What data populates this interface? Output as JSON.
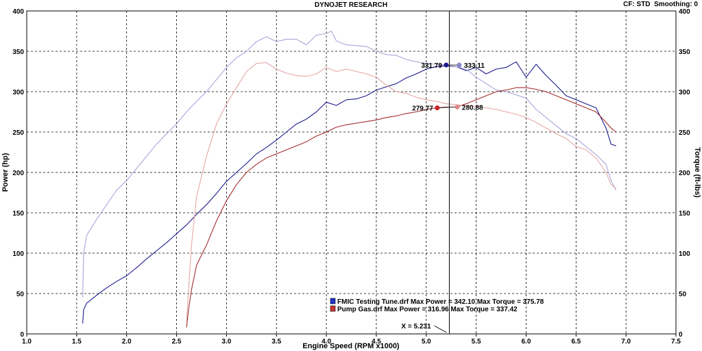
{
  "header": {
    "title": "DYNOJET RESEARCH",
    "cf_label": "CF: STD",
    "smoothing_label": "Smoothing: 0"
  },
  "cursor": {
    "label": "X = 5.231",
    "x": 5.231
  },
  "colors": {
    "fmic_power": "#1a1a8c",
    "fmic_torque": "#a6a6d9",
    "pump_power": "#a32a2a",
    "pump_torque": "#e6a6a6",
    "grid": "#000000",
    "legend_fmic": "#2233cc",
    "legend_pump": "#cc3333"
  },
  "legend": [
    {
      "name": "FMIC Testing Tune.drf",
      "max_power_label": "Max Power = 342.10",
      "max_torque_label": "Max Torque = 375.78"
    },
    {
      "name": "Pump Gas.drf",
      "max_power_label": "Max Power = 316.96",
      "max_torque_label": "Max Torque = 337.42"
    }
  ],
  "markers": [
    {
      "label": "331.79",
      "x": 5.2,
      "y": 333,
      "axis": "power",
      "color": "#1a1a8c"
    },
    {
      "label": "333.11",
      "x": 5.33,
      "y": 333,
      "axis": "torque",
      "color": "#8888cc"
    },
    {
      "label": "279.77",
      "x": 5.11,
      "y": 280,
      "axis": "power",
      "color": "#cc2222"
    },
    {
      "label": "280.88",
      "x": 5.31,
      "y": 281,
      "axis": "torque",
      "color": "#e08a8a"
    }
  ],
  "chart_data": {
    "type": "line",
    "title": "DYNOJET RESEARCH",
    "xlabel": "Engine Speed (RPM x1000)",
    "ylabel": "Power (hp)",
    "y2label": "Torque (ft-lbs)",
    "xlim": [
      1.0,
      7.5
    ],
    "ylim": [
      0,
      400
    ],
    "y2lim": [
      0,
      400
    ],
    "xticks": [
      "1.0",
      "1.5",
      "2.0",
      "2.5",
      "3.0",
      "3.5",
      "4.0",
      "4.5",
      "5.0",
      "5.5",
      "6.0",
      "6.5",
      "7.0",
      "7.5"
    ],
    "yticks": [
      "0",
      "50",
      "100",
      "150",
      "200",
      "250",
      "300",
      "350",
      "400"
    ],
    "grid": true,
    "legend_position": "bottom-center",
    "series": [
      {
        "name": "FMIC Testing Tune.drf",
        "quantity": "power",
        "axis": "left",
        "x": [
          1.56,
          1.57,
          1.6,
          1.7,
          1.8,
          1.9,
          2.0,
          2.1,
          2.2,
          2.3,
          2.4,
          2.5,
          2.6,
          2.7,
          2.8,
          2.9,
          3.0,
          3.1,
          3.2,
          3.3,
          3.4,
          3.5,
          3.6,
          3.7,
          3.8,
          3.9,
          4.0,
          4.1,
          4.2,
          4.3,
          4.4,
          4.5,
          4.6,
          4.7,
          4.8,
          4.9,
          5.0,
          5.1,
          5.2,
          5.3,
          5.4,
          5.5,
          5.6,
          5.7,
          5.8,
          5.9,
          6.0,
          6.1,
          6.2,
          6.3,
          6.4,
          6.5,
          6.6,
          6.7,
          6.8,
          6.85,
          6.9
        ],
        "y": [
          13,
          30,
          38,
          48,
          57,
          65,
          72,
          82,
          93,
          103,
          113,
          124,
          135,
          148,
          160,
          174,
          189,
          200,
          211,
          223,
          231,
          240,
          250,
          260,
          266,
          275,
          287,
          283,
          290,
          291,
          295,
          302,
          306,
          310,
          317,
          322,
          328,
          331,
          332,
          331,
          326,
          330,
          322,
          328,
          330,
          337,
          318,
          334,
          320,
          308,
          295,
          290,
          285,
          280,
          255,
          235,
          233
        ]
      },
      {
        "name": "FMIC Testing Tune.drf",
        "quantity": "torque",
        "axis": "right",
        "x": [
          1.56,
          1.57,
          1.6,
          1.7,
          1.8,
          1.9,
          2.0,
          2.1,
          2.2,
          2.3,
          2.4,
          2.5,
          2.6,
          2.7,
          2.8,
          2.9,
          3.0,
          3.1,
          3.2,
          3.3,
          3.4,
          3.5,
          3.6,
          3.7,
          3.8,
          3.9,
          4.0,
          4.05,
          4.1,
          4.2,
          4.3,
          4.4,
          4.5,
          4.6,
          4.7,
          4.8,
          4.9,
          5.0,
          5.1,
          5.2,
          5.3,
          5.4,
          5.5,
          5.6,
          5.7,
          5.8,
          5.9,
          6.0,
          6.1,
          6.2,
          6.3,
          6.4,
          6.5,
          6.6,
          6.7,
          6.8,
          6.85,
          6.9
        ],
        "y": [
          45,
          100,
          122,
          142,
          160,
          178,
          190,
          205,
          220,
          235,
          248,
          260,
          275,
          288,
          300,
          315,
          330,
          342,
          350,
          362,
          368,
          362,
          365,
          365,
          358,
          370,
          372,
          375,
          363,
          358,
          357,
          356,
          350,
          346,
          345,
          340,
          337,
          335,
          334,
          333,
          331,
          328,
          318,
          310,
          302,
          300,
          296,
          292,
          278,
          268,
          258,
          248,
          242,
          232,
          222,
          210,
          190,
          178
        ]
      },
      {
        "name": "Pump Gas.drf",
        "quantity": "power",
        "axis": "left",
        "x": [
          2.6,
          2.62,
          2.65,
          2.7,
          2.8,
          2.9,
          3.0,
          3.1,
          3.2,
          3.3,
          3.4,
          3.5,
          3.6,
          3.7,
          3.8,
          3.9,
          4.0,
          4.1,
          4.2,
          4.3,
          4.4,
          4.5,
          4.6,
          4.7,
          4.8,
          4.9,
          5.0,
          5.1,
          5.2,
          5.3,
          5.4,
          5.5,
          5.6,
          5.7,
          5.8,
          5.9,
          6.0,
          6.1,
          6.2,
          6.3,
          6.4,
          6.5,
          6.6,
          6.7,
          6.8,
          6.85,
          6.9
        ],
        "y": [
          8,
          30,
          55,
          85,
          110,
          140,
          165,
          185,
          200,
          210,
          218,
          223,
          228,
          233,
          238,
          245,
          250,
          256,
          259,
          261,
          263,
          265,
          268,
          270,
          273,
          275,
          278,
          280,
          281,
          281,
          285,
          290,
          295,
          300,
          302,
          305,
          305,
          303,
          300,
          295,
          290,
          285,
          280,
          275,
          262,
          255,
          250
        ]
      },
      {
        "name": "Pump Gas.drf",
        "quantity": "torque",
        "axis": "right",
        "x": [
          2.6,
          2.62,
          2.65,
          2.7,
          2.8,
          2.9,
          3.0,
          3.1,
          3.2,
          3.3,
          3.4,
          3.5,
          3.6,
          3.7,
          3.8,
          3.9,
          4.0,
          4.1,
          4.2,
          4.3,
          4.4,
          4.5,
          4.6,
          4.7,
          4.8,
          4.9,
          5.0,
          5.1,
          5.2,
          5.3,
          5.4,
          5.5,
          5.6,
          5.7,
          5.8,
          5.9,
          6.0,
          6.1,
          6.2,
          6.3,
          6.4,
          6.5,
          6.6,
          6.7,
          6.8,
          6.85,
          6.9
        ],
        "y": [
          15,
          55,
          110,
          170,
          220,
          260,
          285,
          305,
          325,
          335,
          336,
          328,
          323,
          320,
          319,
          322,
          330,
          325,
          328,
          325,
          322,
          318,
          308,
          300,
          298,
          293,
          290,
          288,
          285,
          284,
          282,
          282,
          280,
          278,
          275,
          272,
          268,
          262,
          255,
          248,
          242,
          232,
          228,
          218,
          200,
          185,
          180
        ]
      }
    ]
  }
}
